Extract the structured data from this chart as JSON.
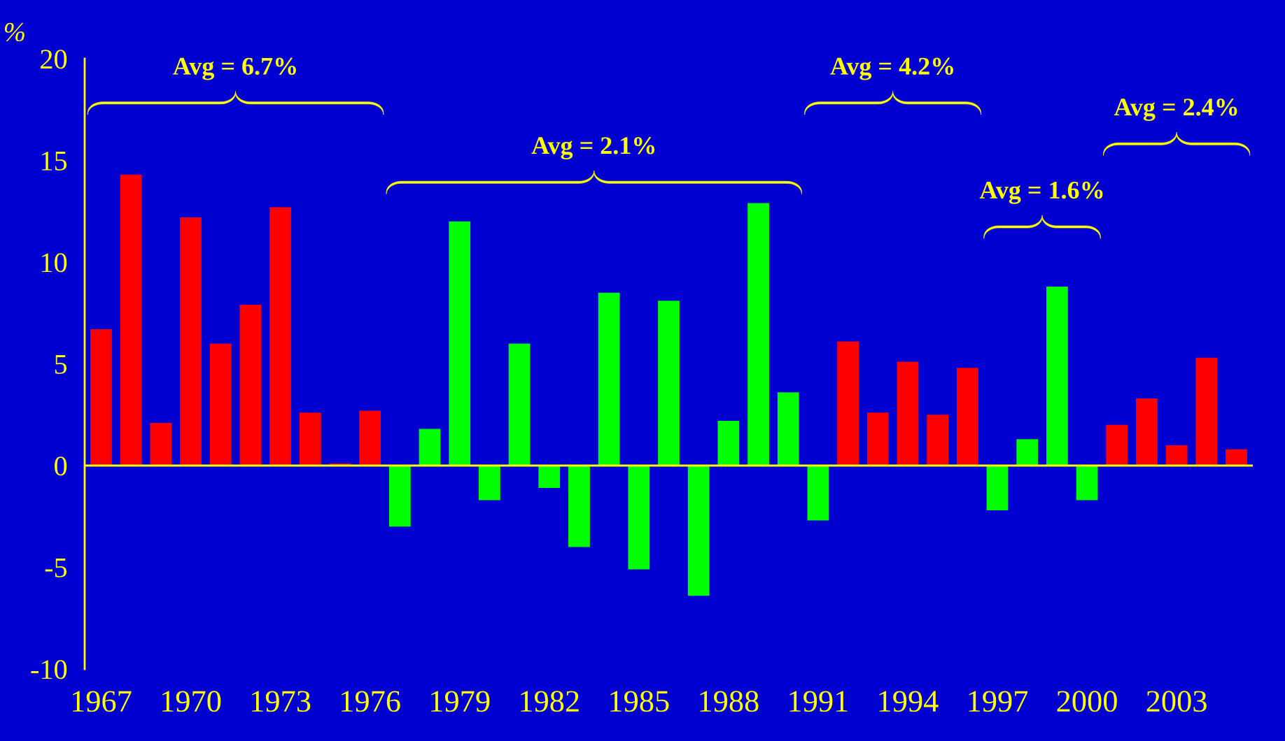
{
  "chart_data": {
    "type": "bar",
    "ylabel": "%",
    "categories": [
      "1967",
      null,
      null,
      "1970",
      null,
      null,
      "1973",
      null,
      null,
      "1976",
      null,
      null,
      "1979",
      null,
      null,
      "1982",
      null,
      null,
      "1985",
      null,
      null,
      "1988",
      null,
      null,
      "1991",
      null,
      null,
      "1994",
      null,
      null,
      "1997",
      null,
      null,
      "2000",
      null,
      null,
      "2003",
      null,
      null
    ],
    "values": [
      6.7,
      14.3,
      2.1,
      12.2,
      6.0,
      7.9,
      12.7,
      2.6,
      0.1,
      2.7,
      -3.0,
      1.8,
      12.0,
      -1.7,
      6.0,
      -1.1,
      -4.0,
      8.5,
      -5.1,
      8.1,
      -6.4,
      2.2,
      12.9,
      3.6,
      -2.7,
      6.1,
      2.6,
      5.1,
      2.5,
      4.8,
      -2.2,
      1.3,
      8.8,
      -1.7,
      2.0,
      3.3,
      1.0,
      5.3,
      0.8
    ],
    "colors": [
      "#ff0000",
      "#ff0000",
      "#ff0000",
      "#ff0000",
      "#ff0000",
      "#ff0000",
      "#ff0000",
      "#ff0000",
      "#ff0000",
      "#ff0000",
      "#00ff00",
      "#00ff00",
      "#00ff00",
      "#00ff00",
      "#00ff00",
      "#00ff00",
      "#00ff00",
      "#00ff00",
      "#00ff00",
      "#00ff00",
      "#00ff00",
      "#00ff00",
      "#00ff00",
      "#00ff00",
      "#00ff00",
      "#ff0000",
      "#ff0000",
      "#ff0000",
      "#ff0000",
      "#ff0000",
      "#00ff00",
      "#00ff00",
      "#00ff00",
      "#00ff00",
      "#ff0000",
      "#ff0000",
      "#ff0000",
      "#ff0000",
      "#ff0000"
    ],
    "ylim": [
      -10,
      20
    ],
    "yticks": [
      -10,
      -5,
      0,
      5,
      10,
      15,
      20
    ],
    "grid": false,
    "legend": false,
    "ref_lines": [
      {
        "axis": "y",
        "value": 0,
        "color": "#ffff00"
      }
    ],
    "annotations": [
      "Avg = 6.7%",
      "Avg = 2.1%",
      "Avg = 4.2%",
      "Avg = 1.6%",
      "Avg = 2.4%"
    ]
  }
}
